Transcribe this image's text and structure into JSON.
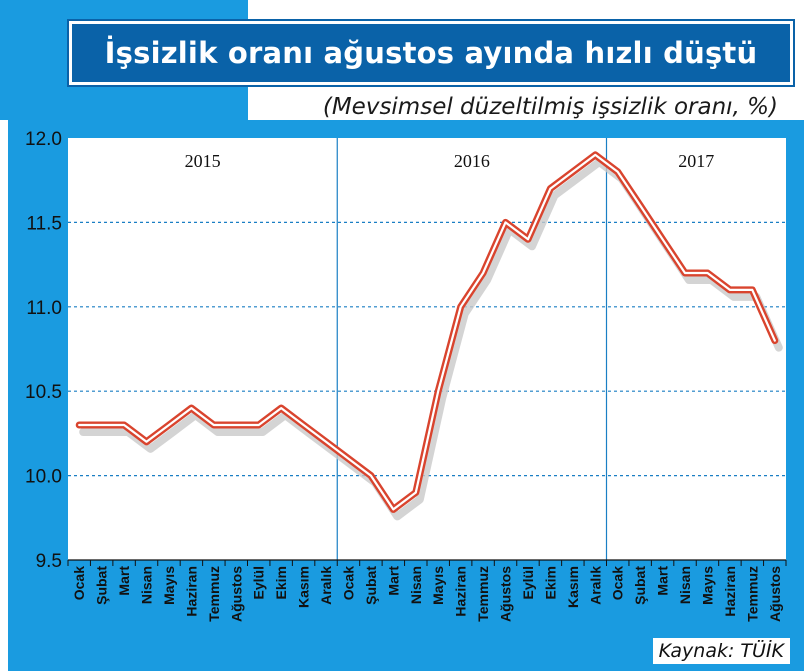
{
  "title": "İşsizlik oranı ağustos ayında hızlı düştü",
  "subtitle": "(Mevsimsel düzeltilmiş işsizlik oranı, %)",
  "source": "Kaynak: TÜİK",
  "colors": {
    "accent": "#1a9be0",
    "title_bg": "#0a62a8",
    "line": "#d9442e",
    "grid": "#1a7fc4"
  },
  "chart_data": {
    "type": "line",
    "title": "İşsizlik oranı ağustos ayında hızlı düştü",
    "subtitle": "(Mevsimsel düzeltilmiş işsizlik oranı, %)",
    "ylim": [
      9.5,
      12.0
    ],
    "yticks": [
      "12.0",
      "11.5",
      "11.0",
      "10.5",
      "10.0",
      "9.5"
    ],
    "grid": "horizontal dashed",
    "years": [
      "2015",
      "2016",
      "2017"
    ],
    "categories": [
      "Ocak",
      "Şubat",
      "Mart",
      "Nisan",
      "Mayıs",
      "Haziran",
      "Temmuz",
      "Ağustos",
      "Eylül",
      "Ekim",
      "Kasım",
      "Aralık",
      "Ocak",
      "Şubat",
      "Mart",
      "Nisan",
      "Mayıs",
      "Haziran",
      "Temmuz",
      "Ağustos",
      "Eylül",
      "Ekim",
      "Kasım",
      "Aralık",
      "Ocak",
      "Şubat",
      "Mart",
      "Nisan",
      "Mayıs",
      "Haziran",
      "Temmuz",
      "Ağustos"
    ],
    "series": [
      {
        "values": [
          10.3,
          10.3,
          10.3,
          10.2,
          10.3,
          10.4,
          10.3,
          10.3,
          10.3,
          10.4,
          10.3,
          10.2,
          10.1,
          10.0,
          9.8,
          9.9,
          10.5,
          11.0,
          11.2,
          11.5,
          11.4,
          11.7,
          11.8,
          11.9,
          11.8,
          11.6,
          11.4,
          11.2,
          11.2,
          11.1,
          11.1,
          10.8
        ]
      }
    ]
  }
}
